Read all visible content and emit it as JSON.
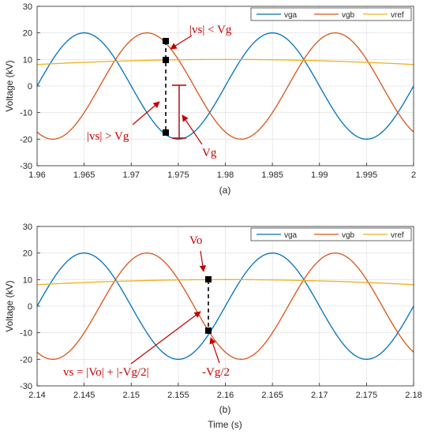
{
  "chart_data": [
    {
      "type": "line",
      "subplot_label": "(a)",
      "xlabel": "",
      "ylabel": "Voltage (kV)",
      "xlim": [
        1.96,
        2
      ],
      "ylim": [
        -30,
        30
      ],
      "xticks": [
        "1.96",
        "1.965",
        "1.97",
        "1.975",
        "1.98",
        "1.985",
        "1.99",
        "1.995",
        "2"
      ],
      "yticks": [
        "-30",
        "-20",
        "-10",
        "0",
        "10",
        "20",
        "30"
      ],
      "grid": true,
      "legend_position": "top-right",
      "series": [
        {
          "name": "vga",
          "color": "#0072bd",
          "amplitude": 20,
          "period": 0.02,
          "peak_at": 1.965
        },
        {
          "name": "vgb",
          "color": "#d95319",
          "amplitude": 20,
          "period": 0.02,
          "peak_at": 1.97167
        },
        {
          "name": "vref",
          "color": "#edb120",
          "amplitude": 10,
          "period": 0.2,
          "peak_at": 1.98
        }
      ],
      "markers": [
        {
          "x": 1.9737,
          "y": 17.2
        },
        {
          "x": 1.9737,
          "y": 10
        },
        {
          "x": 1.9737,
          "y": -17.8
        }
      ],
      "annotations": [
        {
          "text": "|vs| < Vg"
        },
        {
          "text": "|vs| > Vg"
        },
        {
          "text": "Vg"
        }
      ],
      "vg_bracket": {
        "x": 1.975,
        "y_top": 0,
        "y_bottom": -20
      }
    },
    {
      "type": "line",
      "subplot_label": "(b)",
      "xlabel": "Time (s)",
      "ylabel": "Voltage (kV)",
      "xlim": [
        2.14,
        2.18
      ],
      "ylim": [
        -30,
        30
      ],
      "xticks": [
        "2.14",
        "2.145",
        "2.15",
        "2.155",
        "2.16",
        "2.165",
        "2.17",
        "2.175",
        "2.18"
      ],
      "yticks": [
        "-30",
        "-20",
        "-10",
        "0",
        "10",
        "20",
        "30"
      ],
      "grid": true,
      "legend_position": "top-right",
      "series": [
        {
          "name": "vga",
          "color": "#0072bd",
          "amplitude": 20,
          "period": 0.02,
          "peak_at": 2.145
        },
        {
          "name": "vgb",
          "color": "#d95319",
          "amplitude": 20,
          "period": 0.02,
          "peak_at": 2.15167
        },
        {
          "name": "vref",
          "color": "#edb120",
          "amplitude": 10,
          "period": 0.2,
          "peak_at": 2.16
        }
      ],
      "markers": [
        {
          "x": 2.1582,
          "y": 9.8
        },
        {
          "x": 2.1582,
          "y": -9.5
        }
      ],
      "annotations": [
        {
          "text": "Vo"
        },
        {
          "text": "-Vg/2"
        },
        {
          "text": "vs = |Vo| + |-Vg/2|"
        }
      ]
    }
  ]
}
